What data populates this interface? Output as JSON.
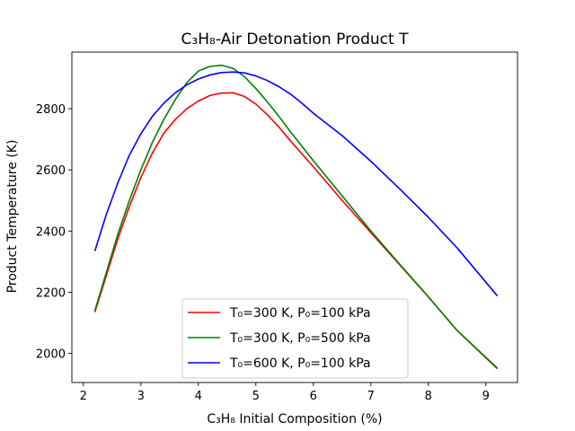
{
  "chart_data": {
    "type": "line",
    "title": "C₃H₈-Air Detonation Product T",
    "xlabel": "C₃H₈ Initial Composition (%)",
    "ylabel": "Product Temperature (K)",
    "xlim": [
      1.8,
      9.55
    ],
    "ylim": [
      1905,
      2985
    ],
    "xticks": [
      2,
      3,
      4,
      5,
      6,
      7,
      8,
      9
    ],
    "yticks": [
      2000,
      2200,
      2400,
      2600,
      2800
    ],
    "grid": false,
    "legend_position": "lower-center",
    "series": [
      {
        "name": "T₀=300 K, P₀=100 kPa",
        "color": "#ff0000",
        "x": [
          2.2,
          2.4,
          2.6,
          2.8,
          3.0,
          3.2,
          3.4,
          3.6,
          3.8,
          4.0,
          4.2,
          4.4,
          4.6,
          4.8,
          5.0,
          5.2,
          5.4,
          5.6,
          6.0,
          6.5,
          7.0,
          7.5,
          8.0,
          8.5,
          9.2
        ],
        "y": [
          2135,
          2255,
          2375,
          2480,
          2575,
          2655,
          2720,
          2765,
          2800,
          2825,
          2843,
          2851,
          2852,
          2840,
          2815,
          2780,
          2740,
          2695,
          2610,
          2500,
          2395,
          2290,
          2185,
          2075,
          1950
        ]
      },
      {
        "name": "T₀=300 K, P₀=500 kPa",
        "color": "#008000",
        "x": [
          2.2,
          2.4,
          2.6,
          2.8,
          3.0,
          3.2,
          3.4,
          3.6,
          3.8,
          4.0,
          4.2,
          4.4,
          4.6,
          4.8,
          5.0,
          5.2,
          5.4,
          5.6,
          6.0,
          6.5,
          7.0,
          7.5,
          8.0,
          8.5,
          9.2
        ],
        "y": [
          2140,
          2265,
          2390,
          2500,
          2600,
          2690,
          2765,
          2830,
          2885,
          2923,
          2938,
          2942,
          2932,
          2905,
          2866,
          2822,
          2775,
          2725,
          2630,
          2515,
          2400,
          2292,
          2185,
          2075,
          1952
        ]
      },
      {
        "name": "T₀=600 K, P₀=100 kPa",
        "color": "#0000ff",
        "x": [
          2.2,
          2.4,
          2.6,
          2.8,
          3.0,
          3.2,
          3.4,
          3.6,
          3.8,
          4.0,
          4.2,
          4.4,
          4.6,
          4.8,
          5.0,
          5.2,
          5.4,
          5.6,
          5.8,
          6.0,
          6.5,
          7.0,
          7.5,
          8.0,
          8.5,
          9.2
        ],
        "y": [
          2335,
          2455,
          2558,
          2648,
          2718,
          2775,
          2818,
          2852,
          2878,
          2897,
          2910,
          2918,
          2920,
          2917,
          2907,
          2892,
          2872,
          2848,
          2818,
          2785,
          2712,
          2628,
          2538,
          2445,
          2345,
          2188
        ]
      }
    ]
  }
}
